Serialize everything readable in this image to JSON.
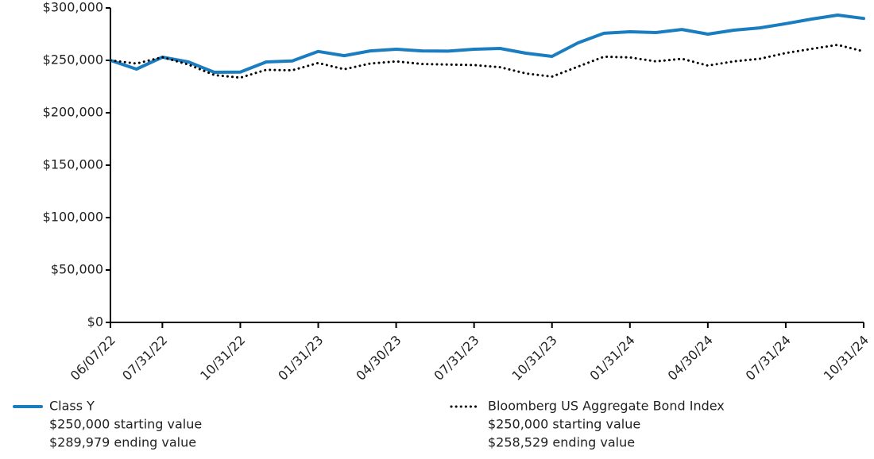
{
  "chart_data": {
    "type": "line",
    "categories": [
      "06/07/22",
      null,
      "07/31/22",
      null,
      null,
      "10/31/22",
      null,
      null,
      "01/31/23",
      null,
      null,
      "04/30/23",
      null,
      null,
      "07/31/23",
      null,
      null,
      "10/31/23",
      null,
      null,
      "01/31/24",
      null,
      null,
      "04/30/24",
      null,
      null,
      "07/31/24",
      null,
      null,
      "10/31/24"
    ],
    "series": [
      {
        "name": "Class Y",
        "color": "#1a7dc0",
        "style": "solid",
        "legend_lines": [
          "$250,000 starting value",
          "$289,979 ending value"
        ],
        "values": [
          250000,
          241700,
          253000,
          248500,
          238600,
          238900,
          248500,
          249500,
          258500,
          254500,
          259000,
          260600,
          259000,
          258800,
          260600,
          261400,
          256800,
          253800,
          266700,
          275800,
          277300,
          276500,
          279500,
          275000,
          278800,
          281000,
          285000,
          289400,
          293200,
          289979
        ]
      },
      {
        "name": "Bloomberg US Aggregate Bond Index",
        "color": "#000000",
        "style": "dotted",
        "legend_lines": [
          "$250,000 starting value",
          "$258,529 ending value"
        ],
        "values": [
          250000,
          247000,
          253000,
          246000,
          236000,
          233500,
          241000,
          240500,
          247500,
          241500,
          247000,
          249000,
          246500,
          246000,
          245500,
          243500,
          237500,
          234500,
          244000,
          253500,
          252800,
          249000,
          251500,
          245000,
          249000,
          251500,
          257000,
          261000,
          264800,
          258529
        ]
      }
    ],
    "ylim": [
      0,
      300000
    ],
    "yticks": [
      {
        "value": 0,
        "label": "$0"
      },
      {
        "value": 50000,
        "label": "$50,000"
      },
      {
        "value": 100000,
        "label": "$100,000"
      },
      {
        "value": 150000,
        "label": "$150,000"
      },
      {
        "value": 200000,
        "label": "$200,000"
      },
      {
        "value": 250000,
        "label": "$250,000"
      },
      {
        "value": 300000,
        "label": "$300,000"
      }
    ],
    "grid": false
  }
}
